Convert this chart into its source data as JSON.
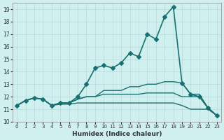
{
  "xlabel": "Humidex (Indice chaleur)",
  "ylabel": "",
  "background_color": "#d0f0f0",
  "grid_color": "#b8dada",
  "line_color": "#1a7070",
  "xlim": [
    -0.5,
    23.5
  ],
  "ylim": [
    10,
    19.5
  ],
  "xticks": [
    0,
    1,
    2,
    3,
    4,
    5,
    6,
    7,
    8,
    9,
    10,
    11,
    12,
    13,
    14,
    15,
    16,
    17,
    18,
    19,
    20,
    21,
    22,
    23
  ],
  "yticks": [
    10,
    11,
    12,
    13,
    14,
    15,
    16,
    17,
    18,
    19
  ],
  "series": [
    {
      "x": [
        0,
        1,
        2,
        3,
        4,
        5,
        6,
        7,
        8,
        9,
        10,
        11,
        12,
        13,
        14,
        15,
        16,
        17,
        18,
        19,
        20,
        21,
        22,
        23
      ],
      "y": [
        11.3,
        11.7,
        11.9,
        11.8,
        11.3,
        11.5,
        11.5,
        12.0,
        13.0,
        14.3,
        14.5,
        14.3,
        14.7,
        15.5,
        15.2,
        17.0,
        16.6,
        18.4,
        19.2,
        13.1,
        12.2,
        12.0,
        11.1,
        10.5
      ],
      "marker": "D",
      "markersize": 3,
      "linewidth": 1.2
    },
    {
      "x": [
        0,
        1,
        2,
        3,
        4,
        5,
        6,
        7,
        8,
        9,
        10,
        11,
        12,
        13,
        14,
        15,
        16,
        17,
        18,
        19,
        20,
        21,
        22,
        23
      ],
      "y": [
        11.3,
        11.7,
        11.9,
        11.8,
        11.3,
        11.5,
        11.5,
        11.8,
        12.0,
        12.0,
        12.5,
        12.5,
        12.5,
        12.8,
        12.8,
        13.0,
        13.0,
        13.2,
        13.2,
        13.1,
        12.2,
        12.2,
        11.1,
        10.5
      ],
      "marker": null,
      "markersize": 0,
      "linewidth": 1.0
    },
    {
      "x": [
        0,
        1,
        2,
        3,
        4,
        5,
        6,
        7,
        8,
        9,
        10,
        11,
        12,
        13,
        14,
        15,
        16,
        17,
        18,
        19,
        20,
        21,
        22,
        23
      ],
      "y": [
        11.3,
        11.7,
        11.9,
        11.8,
        11.3,
        11.5,
        11.5,
        11.8,
        12.0,
        12.0,
        12.2,
        12.2,
        12.2,
        12.2,
        12.2,
        12.3,
        12.3,
        12.3,
        12.3,
        12.0,
        12.0,
        12.0,
        11.1,
        10.5
      ],
      "marker": null,
      "markersize": 0,
      "linewidth": 1.0
    },
    {
      "x": [
        0,
        1,
        2,
        3,
        4,
        5,
        6,
        7,
        8,
        9,
        10,
        11,
        12,
        13,
        14,
        15,
        16,
        17,
        18,
        19,
        20,
        21,
        22,
        23
      ],
      "y": [
        11.3,
        11.7,
        11.9,
        11.8,
        11.3,
        11.4,
        11.4,
        11.5,
        11.5,
        11.5,
        11.5,
        11.5,
        11.5,
        11.5,
        11.5,
        11.5,
        11.5,
        11.5,
        11.5,
        11.3,
        11.0,
        11.0,
        11.0,
        10.5
      ],
      "marker": null,
      "markersize": 0,
      "linewidth": 1.0
    }
  ]
}
